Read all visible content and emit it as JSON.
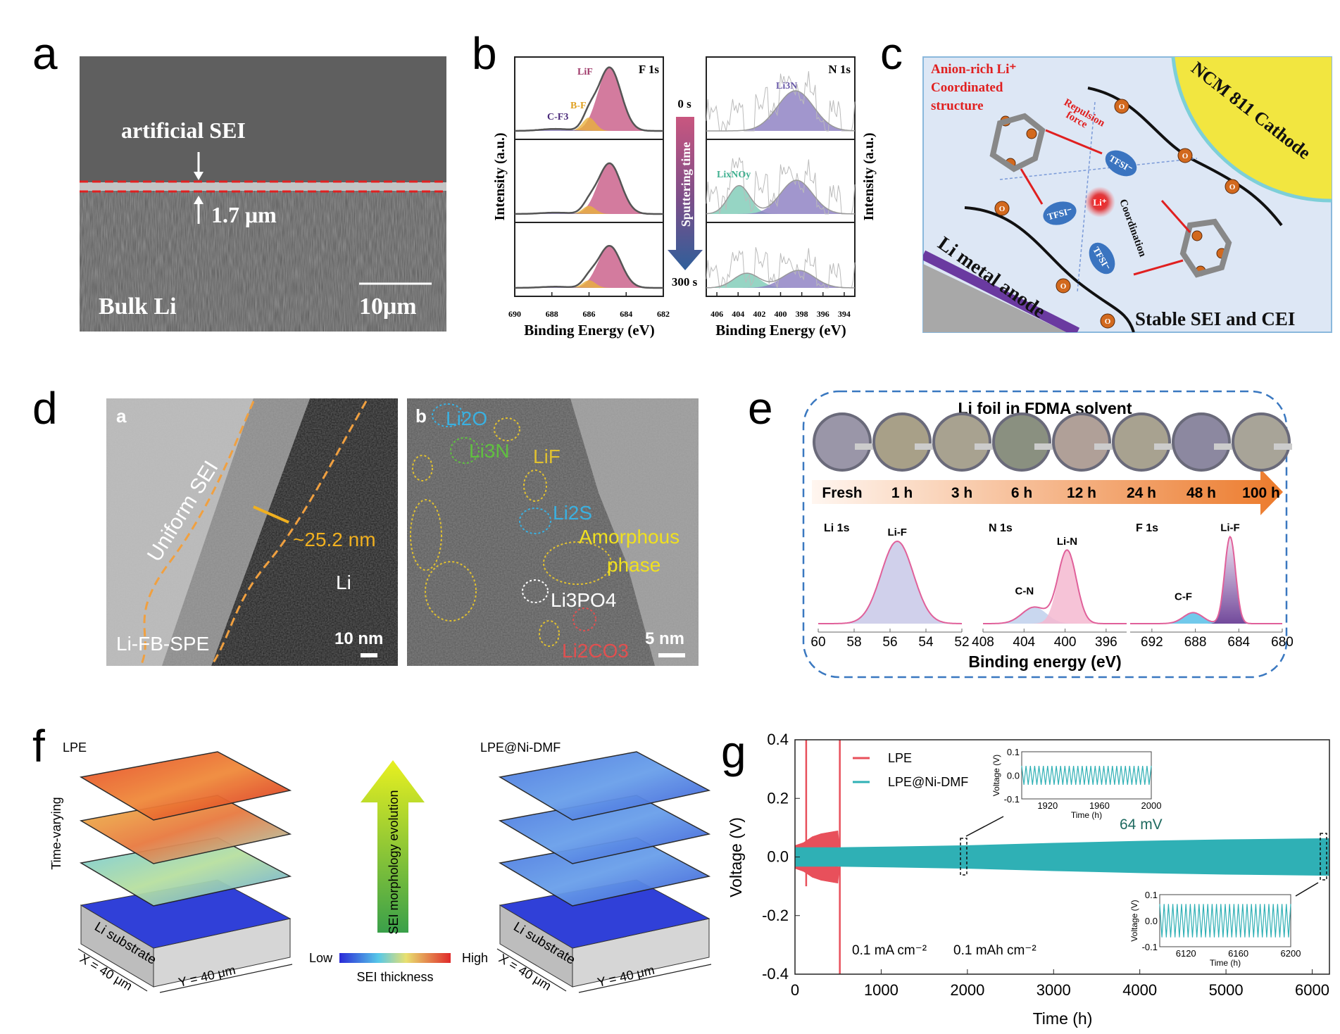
{
  "panel_labels": [
    "a",
    "b",
    "c",
    "d",
    "e",
    "f",
    "g"
  ],
  "panel_a": {
    "annotation": "artificial SEI",
    "thickness": "1.7 μm",
    "region": "Bulk Li",
    "scale_bar": "10μm"
  },
  "panel_b": {
    "left_title": "F 1s",
    "right_title": "N 1s",
    "ylabel": "Intensity (a.u.)",
    "xlabel": "Binding Energy (eV)",
    "arrow_label": "Sputtering time",
    "time_start": "0 s",
    "time_end": "300 s",
    "peak_labels": {
      "lif": "LiF",
      "bf": "B-F",
      "cf3": "C-F3",
      "li3n": "Li3N",
      "lixnoy": "LixNOy"
    }
  },
  "panel_c": {
    "title_line1": "Anion-rich Li⁺",
    "title_line2": "Coordinated",
    "title_line3": "structure",
    "cathode": "NCM 811 Cathode",
    "anode": "Li metal anode",
    "repulsion_line1": "Repulsion",
    "repulsion_line2": "force",
    "coordination": "Coordination",
    "anion": "TFSI⁻",
    "cation": "Li⁺",
    "oxygen": "O",
    "footer": "Stable SEI and CEI"
  },
  "panel_d": {
    "sub_a": "a",
    "sub_b": "b",
    "uniform_sei": "Uniform SEI",
    "thickness": "~25.2 nm",
    "li": "Li",
    "sample": "Li-FB-SPE",
    "scale_a": "10 nm",
    "scale_b": "5 nm",
    "phases": {
      "li2o": "Li2O",
      "li3n": "Li3N",
      "lif": "LiF",
      "li2s": "Li2S",
      "amorphous1": "Amorphous",
      "amorphous2": "phase",
      "li3po4": "Li3PO4",
      "li2co3": "Li2CO3"
    }
  },
  "panel_e": {
    "title": "Li foil in FDMA solvent",
    "times": [
      "Fresh",
      "1 h",
      "3 h",
      "6 h",
      "12 h",
      "24 h",
      "48 h",
      "100 h"
    ],
    "xlabel": "Binding energy (eV)"
  },
  "panel_f": {
    "left_label": "LPE",
    "right_label": "LPE@Ni-DMF",
    "time_label": "Time-varying",
    "arrow_label": "SEI morphology evolution",
    "substrate": "Li substrate",
    "x_dim": "X = 40 μm",
    "y_dim": "Y = 40 μm",
    "colorbar_low": "Low",
    "colorbar_high": "High",
    "colorbar_title": "SEI thickness"
  },
  "panel_g": {
    "condition1": "0.1 mA cm⁻²",
    "condition2": "0.1 mAh cm⁻²",
    "annotation": "64 mV",
    "inset_ylabel": "Voltage (V)",
    "inset_xlabel": "Time (h)"
  },
  "colors": {
    "lpe": "#e8505b",
    "lpe_ni_dmf": "#2fb0b5",
    "lif": "#c85a86",
    "bf": "#e8b23c",
    "li3n": "#8a7cc0",
    "lixnoy": "#7ccbb5",
    "sei_red": "#e02020"
  },
  "chart_data": [
    {
      "type": "area",
      "panel": "b-left",
      "title": "F 1s",
      "xlabel": "Binding Energy (eV)",
      "ylabel": "Intensity (a.u.)",
      "xlim": [
        690,
        682
      ],
      "xticks": [
        690,
        688,
        686,
        684,
        682
      ],
      "series_rows": [
        "0 s",
        "",
        "300 s"
      ],
      "peaks": [
        [
          {
            "name": "LiF",
            "center": 684.9,
            "sigma": 0.62,
            "height": 0.95
          },
          {
            "name": "B-F",
            "center": 686.0,
            "sigma": 0.35,
            "height": 0.2
          },
          {
            "name": "C-F3",
            "center": 687.8,
            "sigma": 0.8,
            "height": 0.03
          }
        ],
        [
          {
            "name": "LiF",
            "center": 684.9,
            "sigma": 0.62,
            "height": 0.75
          },
          {
            "name": "B-F",
            "center": 686.0,
            "sigma": 0.35,
            "height": 0.12
          },
          {
            "name": "C-F3",
            "center": 687.8,
            "sigma": 0.8,
            "height": 0.02
          }
        ],
        [
          {
            "name": "LiF",
            "center": 684.9,
            "sigma": 0.62,
            "height": 0.72
          },
          {
            "name": "B-F",
            "center": 686.0,
            "sigma": 0.35,
            "height": 0.13
          },
          {
            "name": "C-F3",
            "center": 687.8,
            "sigma": 0.8,
            "height": 0.02
          }
        ]
      ]
    },
    {
      "type": "area",
      "panel": "b-right",
      "title": "N 1s",
      "xlabel": "Binding Energy (eV)",
      "ylabel": "Intensity (a.u.)",
      "xlim": [
        407,
        393
      ],
      "xticks": [
        406,
        404,
        402,
        400,
        398,
        396,
        394
      ],
      "peaks": [
        [
          {
            "name": "Li3N",
            "center": 398.6,
            "sigma": 1.7,
            "height": 0.6
          }
        ],
        [
          {
            "name": "LixNOy",
            "center": 403.9,
            "sigma": 1.0,
            "height": 0.42
          },
          {
            "name": "Li3N",
            "center": 398.5,
            "sigma": 1.5,
            "height": 0.5
          }
        ],
        [
          {
            "name": "LixNOy",
            "center": 403.2,
            "sigma": 1.2,
            "height": 0.25
          },
          {
            "name": "Li3N",
            "center": 398.3,
            "sigma": 1.5,
            "height": 0.3
          }
        ]
      ]
    },
    {
      "type": "area",
      "panel": "e",
      "xlabel": "Binding energy (eV)",
      "spectra": [
        {
          "title": "Li 1s",
          "xlim": [
            60,
            52
          ],
          "xticks": [
            60,
            58,
            56,
            54,
            52
          ],
          "peaks": [
            {
              "name": "Li-F",
              "center": 55.6,
              "sigma": 0.9,
              "height": 0.9
            }
          ]
        },
        {
          "title": "N 1s",
          "xlim": [
            408,
            394
          ],
          "xticks": [
            408,
            404,
            400,
            396
          ],
          "peaks": [
            {
              "name": "C-N",
              "center": 403.0,
              "sigma": 1.2,
              "height": 0.18
            },
            {
              "name": "Li-N",
              "center": 399.8,
              "sigma": 0.9,
              "height": 0.8
            }
          ]
        },
        {
          "title": "F 1s",
          "xlim": [
            694,
            680
          ],
          "xticks": [
            692,
            688,
            684,
            680
          ],
          "peaks": [
            {
              "name": "C-F",
              "center": 688.2,
              "sigma": 0.9,
              "height": 0.12
            },
            {
              "name": "Li-F",
              "center": 684.8,
              "sigma": 0.5,
              "height": 0.95
            }
          ]
        }
      ]
    },
    {
      "type": "line",
      "panel": "g",
      "xlabel": "Time (h)",
      "ylabel": "Voltage (V)",
      "xlim": [
        0,
        6200
      ],
      "ylim": [
        -0.4,
        0.4
      ],
      "xticks": [
        0,
        1000,
        2000,
        3000,
        4000,
        5000,
        6000
      ],
      "yticks": [
        0.4,
        0.2,
        0.0,
        -0.2,
        -0.4
      ],
      "legend": "top-left",
      "series": [
        {
          "name": "LPE",
          "envelope_time": [
            0,
            100,
            200,
            300,
            400,
            500,
            530
          ],
          "amplitude": [
            0.04,
            0.05,
            0.07,
            0.08,
            0.085,
            0.09,
            0.4
          ],
          "spikes_time": [
            130,
            520
          ]
        },
        {
          "name": "LPE@Ni-DMF",
          "envelope_time": [
            0,
            500,
            1000,
            2000,
            3000,
            4000,
            5000,
            6200
          ],
          "amplitude": [
            0.035,
            0.033,
            0.035,
            0.04,
            0.048,
            0.055,
            0.06,
            0.064
          ]
        }
      ],
      "insets": [
        {
          "xlim": [
            1900,
            2000
          ],
          "xticks": [
            1920,
            1960,
            2000
          ],
          "ylim": [
            -0.1,
            0.1
          ],
          "yticks": [
            0.1,
            0.0,
            -0.1
          ],
          "amplitude": 0.04
        },
        {
          "xlim": [
            6100,
            6200
          ],
          "xticks": [
            6120,
            6160,
            6200
          ],
          "ylim": [
            -0.1,
            0.1
          ],
          "yticks": [
            0.1,
            0.0,
            -0.1
          ],
          "amplitude": 0.064
        }
      ]
    }
  ]
}
